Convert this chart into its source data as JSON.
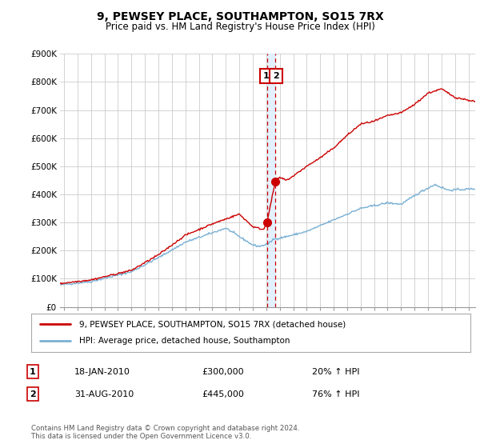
{
  "title": "9, PEWSEY PLACE, SOUTHAMPTON, SO15 7RX",
  "subtitle": "Price paid vs. HM Land Registry's House Price Index (HPI)",
  "ylim": [
    0,
    900000
  ],
  "yticks": [
    0,
    100000,
    200000,
    300000,
    400000,
    500000,
    600000,
    700000,
    800000,
    900000
  ],
  "ytick_labels": [
    "£0",
    "£100K",
    "£200K",
    "£300K",
    "£400K",
    "£500K",
    "£600K",
    "£700K",
    "£800K",
    "£900K"
  ],
  "xlim_start": 1994.7,
  "xlim_end": 2025.5,
  "red_line_color": "#cc0000",
  "blue_line_color": "#7ab0d4",
  "shade_color": "#ddeeff",
  "sale1_x": 2010.05,
  "sale1_y": 300000,
  "sale2_x": 2010.67,
  "sale2_y": 445000,
  "legend_red": "9, PEWSEY PLACE, SOUTHAMPTON, SO15 7RX (detached house)",
  "legend_blue": "HPI: Average price, detached house, Southampton",
  "annotation1_num": "1",
  "annotation1_date": "18-JAN-2010",
  "annotation1_price": "£300,000",
  "annotation1_hpi": "20% ↑ HPI",
  "annotation2_num": "2",
  "annotation2_date": "31-AUG-2010",
  "annotation2_price": "£445,000",
  "annotation2_hpi": "76% ↑ HPI",
  "footer": "Contains HM Land Registry data © Crown copyright and database right 2024.\nThis data is licensed under the Open Government Licence v3.0.",
  "bg_color": "#ffffff",
  "grid_color": "#cccccc"
}
